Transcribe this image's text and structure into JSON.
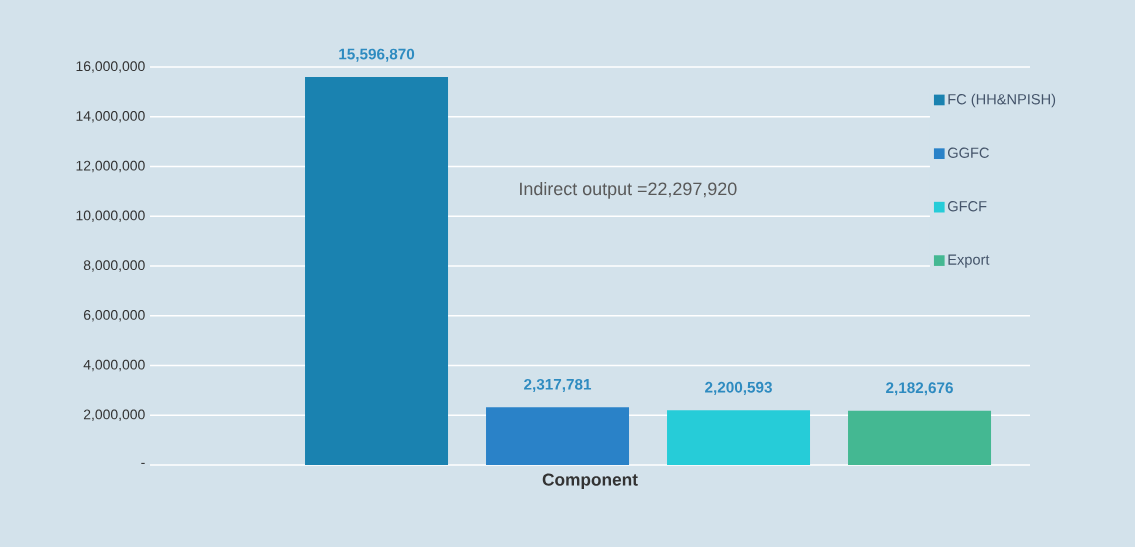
{
  "chart_data": {
    "type": "bar",
    "xlabel": "Component",
    "categories": [
      null
    ],
    "series": [
      {
        "name": "FC (HH&NPISH)",
        "color": "#1a82b0",
        "values": [
          15596870
        ],
        "value_labels": [
          "15,596,870"
        ]
      },
      {
        "name": "GGFC",
        "color": "#2a82c8",
        "values": [
          2317781
        ],
        "value_labels": [
          "2,317,781"
        ]
      },
      {
        "name": "GFCF",
        "color": "#26ccd8",
        "values": [
          2200593
        ],
        "value_labels": [
          "2,200,593"
        ]
      },
      {
        "name": "Export",
        "color": "#44b892",
        "values": [
          2182676
        ],
        "value_labels": [
          "2,182,676"
        ]
      }
    ],
    "annotations": [
      "Indirect output =22,297,920"
    ],
    "ylim": [
      0,
      16000000
    ],
    "yticks": [
      {
        "value": 0,
        "label": "-"
      },
      {
        "value": 2000000,
        "label": "2,000,000"
      },
      {
        "value": 4000000,
        "label": "4,000,000"
      },
      {
        "value": 6000000,
        "label": "6,000,000"
      },
      {
        "value": 8000000,
        "label": "8,000,000"
      },
      {
        "value": 10000000,
        "label": "10,000,000"
      },
      {
        "value": 12000000,
        "label": "12,000,000"
      },
      {
        "value": 14000000,
        "label": "14,000,000"
      },
      {
        "value": 16000000,
        "label": "16,000,000"
      }
    ],
    "grid": "y",
    "legend": "right",
    "tick_labels": "y"
  }
}
